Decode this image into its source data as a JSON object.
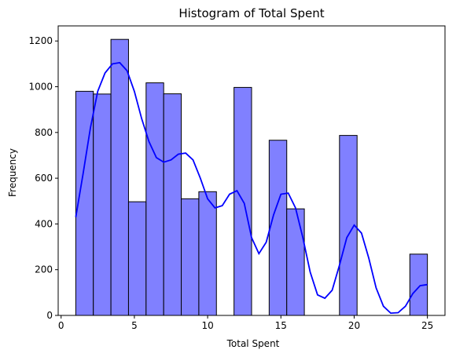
{
  "chart_data": {
    "type": "bar",
    "title": "Histogram of Total Spent",
    "xlabel": "Total Spent",
    "ylabel": "Frequency",
    "xlim": [
      -0.2,
      26.2
    ],
    "ylim": [
      0,
      1266
    ],
    "xticks": [
      0,
      5,
      10,
      15,
      20,
      25
    ],
    "yticks": [
      0,
      200,
      400,
      600,
      800,
      1000,
      1200
    ],
    "bin_edges": [
      1,
      2.2,
      3.4,
      4.6,
      5.8,
      7,
      8.2,
      9.4,
      10.6,
      11.8,
      13,
      14.2,
      15.4,
      16.6,
      17.8,
      19,
      20.2,
      21.4,
      22.6,
      23.8,
      25
    ],
    "counts": [
      980,
      968,
      1207,
      497,
      1017,
      969,
      510,
      541,
      0,
      997,
      0,
      766,
      466,
      0,
      0,
      787,
      0,
      0,
      0,
      268
    ],
    "kde": {
      "x": [
        1,
        1.5,
        2,
        2.5,
        3,
        3.5,
        4,
        4.5,
        5,
        5.5,
        6,
        6.5,
        7,
        7.5,
        8,
        8.5,
        9,
        9.5,
        10,
        10.5,
        11,
        11.5,
        12,
        12.5,
        13,
        13.5,
        14,
        14.5,
        15,
        15.5,
        16,
        16.5,
        17,
        17.5,
        18,
        18.5,
        19,
        19.5,
        20,
        20.5,
        21,
        21.5,
        22,
        22.5,
        23,
        23.5,
        24,
        24.5,
        25
      ],
      "y": [
        430,
        620,
        820,
        980,
        1060,
        1100,
        1105,
        1070,
        980,
        860,
        760,
        690,
        670,
        680,
        705,
        710,
        680,
        600,
        510,
        470,
        480,
        530,
        545,
        490,
        340,
        270,
        320,
        440,
        530,
        535,
        470,
        340,
        190,
        90,
        75,
        110,
        220,
        340,
        395,
        360,
        250,
        120,
        40,
        10,
        12,
        40,
        95,
        130,
        135
      ]
    },
    "bar_fill": "#8080ff",
    "bar_edge": "#000000",
    "kde_color": "#0000ff",
    "grid": false,
    "legend": "none"
  }
}
